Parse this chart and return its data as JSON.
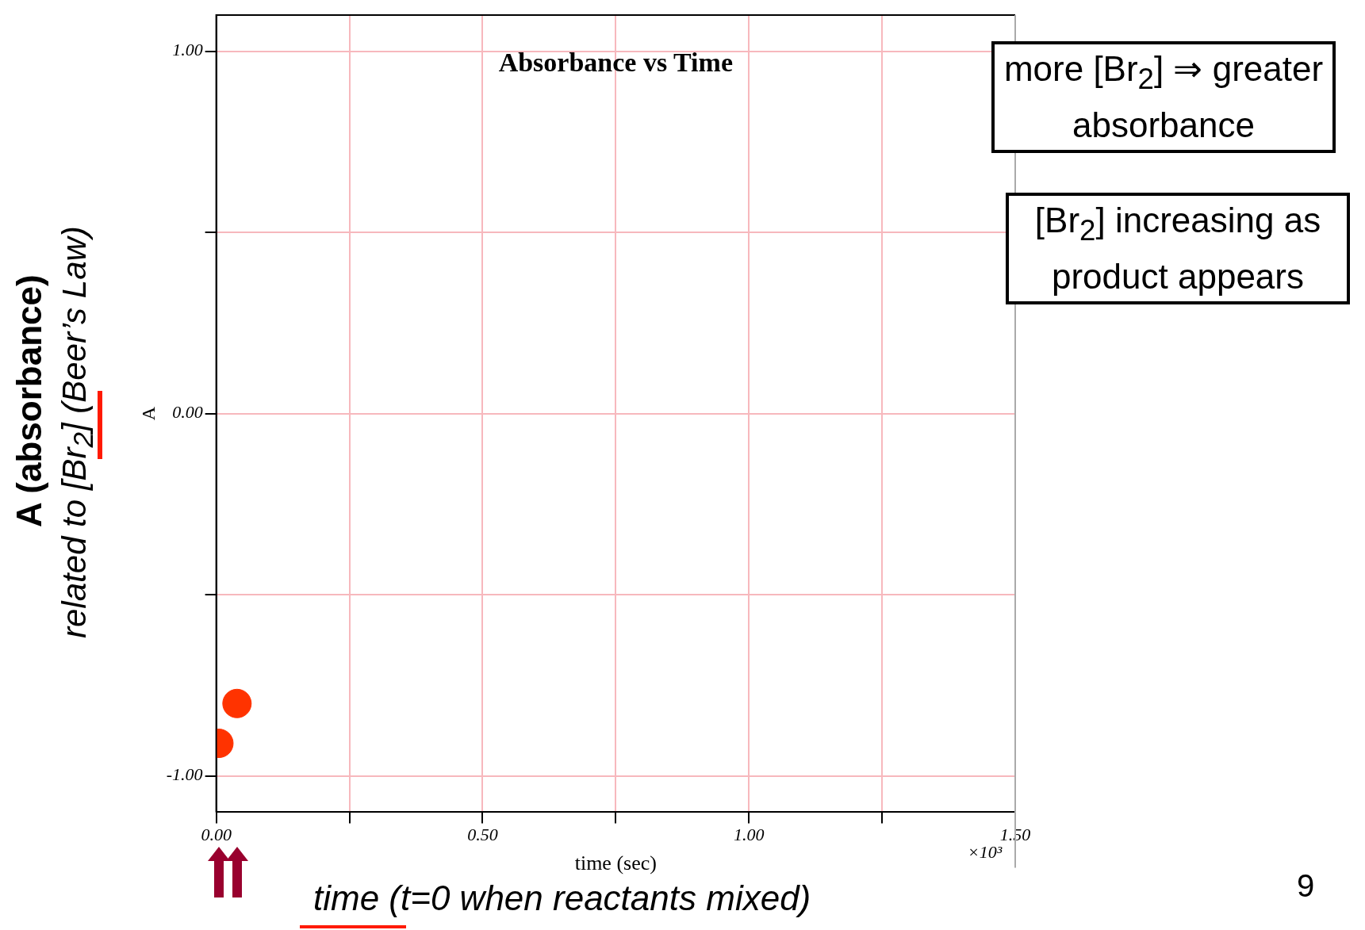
{
  "chart_data": {
    "type": "scatter",
    "title": "Absorbance vs Time",
    "xlabel": "time (sec)",
    "ylabel": "A",
    "x": [
      0.005,
      0.039
    ],
    "series": [
      {
        "color": "#ff3300",
        "values": [
          -0.91,
          -0.8
        ]
      }
    ],
    "xlim": [
      0,
      1.5
    ],
    "ylim": [
      -1.1,
      1.1
    ],
    "xticks": [
      {
        "value": 0,
        "label": "0.00"
      },
      {
        "value": 0.25,
        "label": null
      },
      {
        "value": 0.5,
        "label": "0.50"
      },
      {
        "value": 0.75,
        "label": null
      },
      {
        "value": 1,
        "label": "1.00"
      },
      {
        "value": 1.25,
        "label": null
      },
      {
        "value": 1.5,
        "label": "1.50"
      }
    ],
    "yticks": [
      {
        "value": -1,
        "label": "-1.00"
      },
      {
        "value": -0.5,
        "label": null
      },
      {
        "value": 0,
        "label": "0.00"
      },
      {
        "value": 0.5,
        "label": null
      },
      {
        "value": 1,
        "label": "1.00"
      }
    ],
    "grid": true,
    "legend": false,
    "marker": "circle",
    "annotations": [
      "×10³",
      "more [Br$_{2}$] ⇒ greater absorbance",
      "[Br$_{2}$] increasing as product appears",
      "A (absorbance)",
      "related to [Br$_{2}$]  (Beer’s Law)",
      "time (t=0 when reactants mixed)",
      "9"
    ]
  }
}
